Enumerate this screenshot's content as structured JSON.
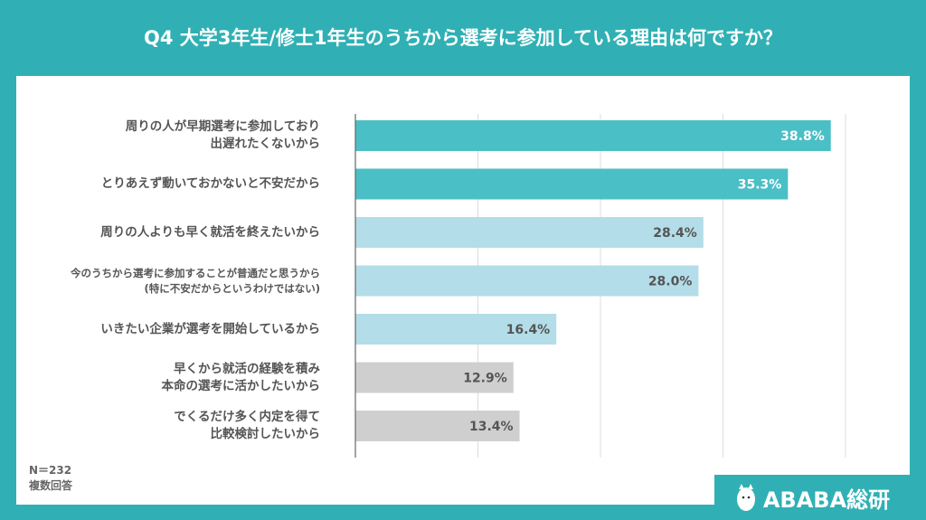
{
  "title": "Q4  大学3年生/修士1年生のうちから選考に参加している理由は何ですか？",
  "footer": {
    "n": "N＝232",
    "note": "複数回答"
  },
  "logo": "ABABA総研",
  "colors": {
    "background": "#30b0b4",
    "bar_dark": "#4bbfc6",
    "bar_light": "#b3dde8",
    "bar_gray": "#cfcfcf"
  },
  "chart_data": {
    "type": "bar",
    "orientation": "horizontal",
    "categories": [
      "周りの人が早期選考に参加しており\n出遅れたくないから",
      "とりあえず動いておかないと不安だから",
      "周りの人よりも早く就活を終えたいから",
      "今のうちから選考に参加することが普通だと思うから\n(特に不安だからというわけではない)",
      "いきたい企業が選考を開始しているから",
      "早くから就活の経験を積み\n本命の選考に活かしたいから",
      "でくるだけ多く内定を得て\n比較検討したいから"
    ],
    "values": [
      38.8,
      35.3,
      28.4,
      28.0,
      16.4,
      12.9,
      13.4
    ],
    "data_labels": [
      "38.8%",
      "35.3%",
      "28.4%",
      "28.0%",
      "16.4%",
      "12.9%",
      "13.4%"
    ],
    "bar_colors": [
      "#4bbfc6",
      "#4bbfc6",
      "#b3dde8",
      "#b3dde8",
      "#b3dde8",
      "#cfcfcf",
      "#cfcfcf"
    ],
    "xlim": [
      0,
      40
    ],
    "grid": true,
    "legend": "none"
  }
}
